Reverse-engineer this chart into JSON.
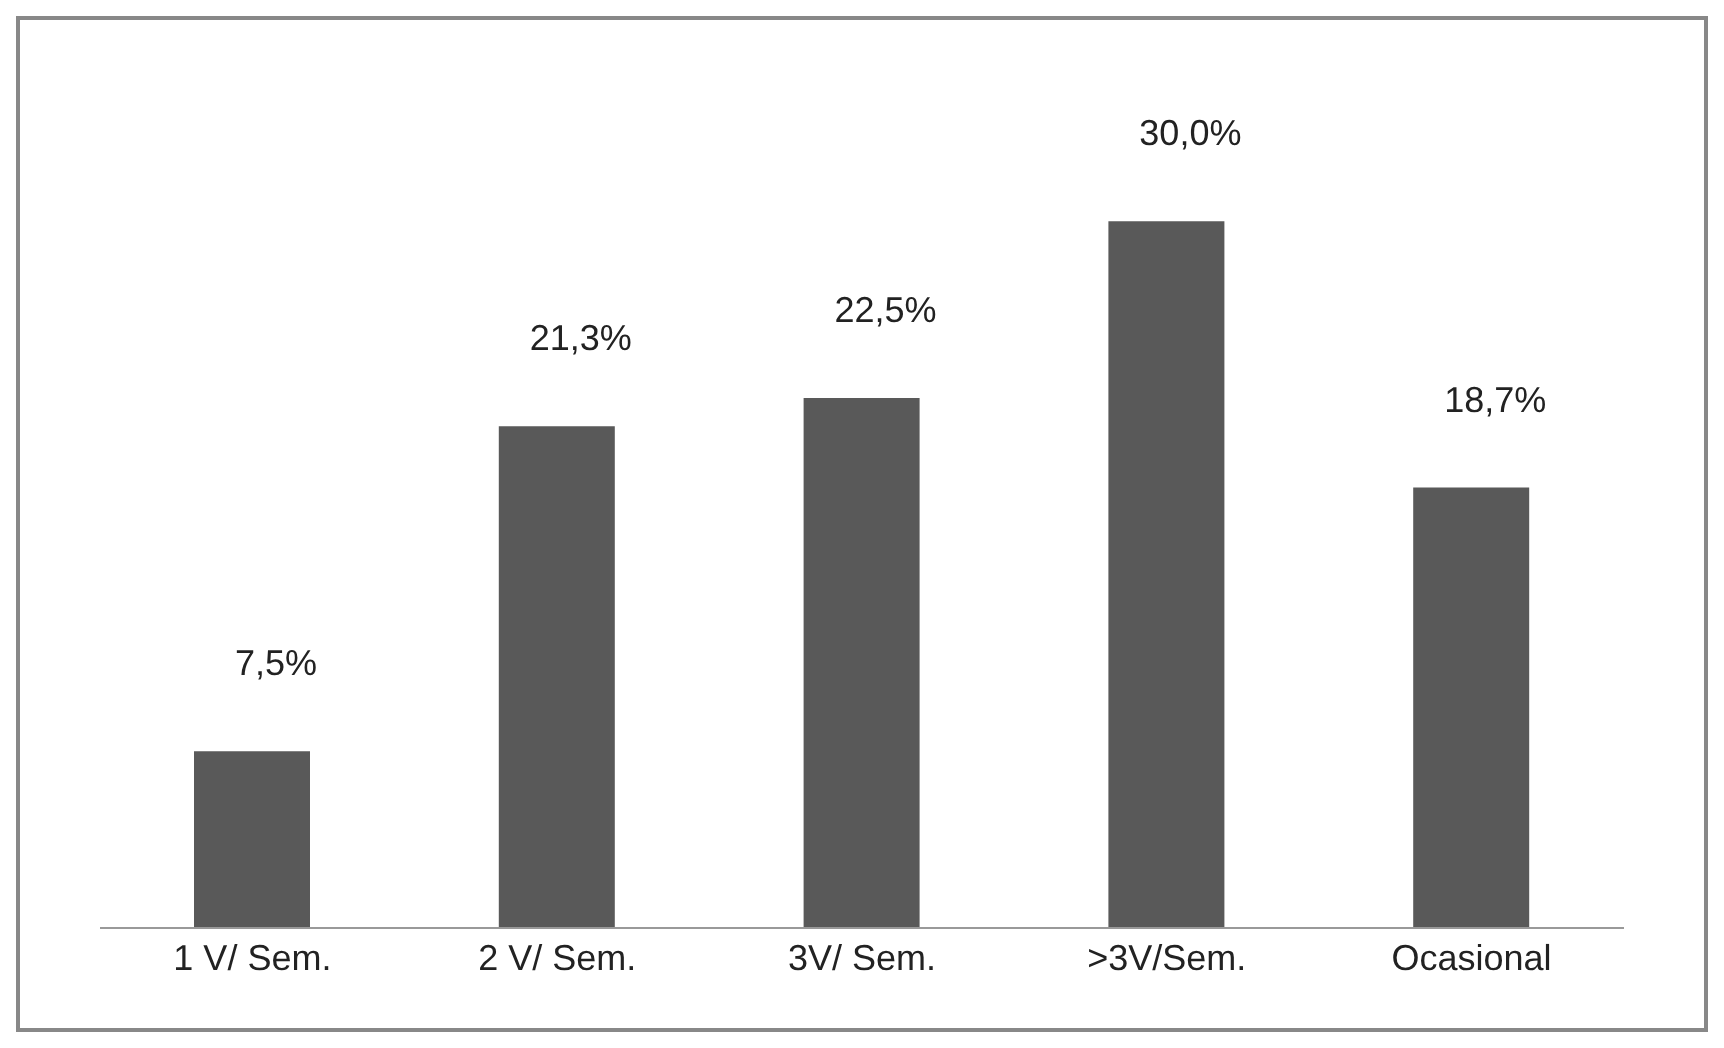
{
  "chart_data": {
    "type": "bar",
    "categories": [
      "1 V/ Sem.",
      "2 V/ Sem.",
      "3V/ Sem.",
      ">3V/Sem.",
      "Ocasional"
    ],
    "values": [
      7.5,
      21.3,
      22.5,
      30.0,
      18.7
    ],
    "value_labels": [
      "7,5%",
      "21,3%",
      "22,5%",
      "30,0%",
      "18,7%"
    ],
    "color": "#595959",
    "grid": false,
    "legend": false
  }
}
